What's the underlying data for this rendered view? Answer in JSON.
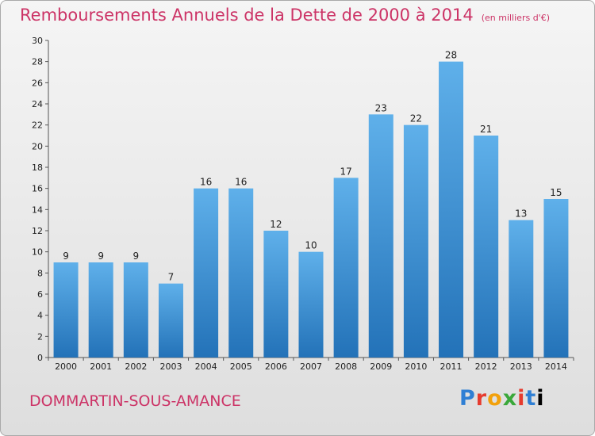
{
  "header": {
    "title": "Remboursements Annuels de la Dette de 2000 à 2014",
    "unit": "(en milliers d'€)"
  },
  "footer": {
    "commune": "DOMMARTIN-SOUS-AMANCE",
    "logo_letters": [
      "P",
      "r",
      "o",
      "x",
      "i",
      "t",
      "i"
    ]
  },
  "colors": {
    "title": "#cc3366",
    "bar_light": "#5fb0ea",
    "bar_dark": "#2372b8"
  },
  "chart_data": {
    "type": "bar",
    "title": "Remboursements Annuels de la Dette de 2000 à 2014",
    "xlabel": "",
    "ylabel": "",
    "categories": [
      "2000",
      "2001",
      "2002",
      "2003",
      "2004",
      "2005",
      "2006",
      "2007",
      "2008",
      "2009",
      "2010",
      "2011",
      "2012",
      "2013",
      "2014"
    ],
    "values": [
      9,
      9,
      9,
      7,
      16,
      16,
      12,
      10,
      17,
      23,
      22,
      28,
      21,
      13,
      15
    ],
    "ylim": [
      0,
      30
    ],
    "yticks": [
      0,
      2,
      4,
      6,
      8,
      10,
      12,
      14,
      16,
      18,
      20,
      22,
      24,
      26,
      28,
      30
    ],
    "grid": false,
    "data_labels": true
  }
}
